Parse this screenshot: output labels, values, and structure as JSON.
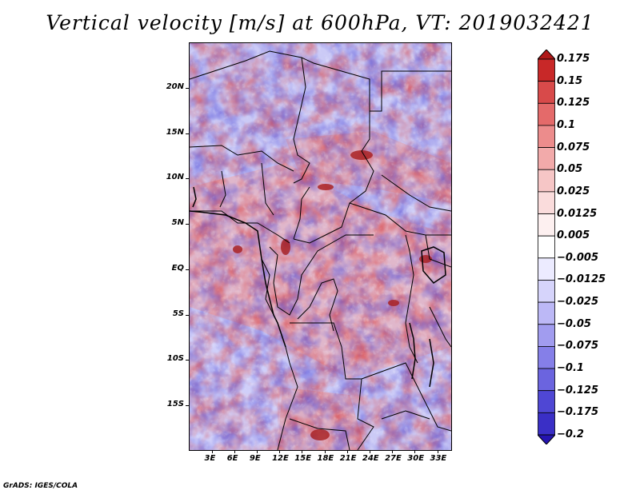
{
  "title": "Vertical velocity [m/s] at 600hPa, VT: 2019032421",
  "footer": "GrADS: IGES/COLA",
  "axes": {
    "lat_labels": [
      "20N",
      "15N",
      "10N",
      "5N",
      "EQ",
      "5S",
      "10S",
      "15S"
    ],
    "lon_labels": [
      "3E",
      "6E",
      "9E",
      "12E",
      "15E",
      "18E",
      "21E",
      "24E",
      "27E",
      "30E",
      "33E"
    ]
  },
  "colorbar": {
    "levels": [
      "0.175",
      "0.15",
      "0.125",
      "0.1",
      "0.075",
      "0.05",
      "0.025",
      "0.0125",
      "0.005",
      "−0.005",
      "−0.0125",
      "−0.025",
      "−0.05",
      "−0.075",
      "−0.1",
      "−0.125",
      "−0.175",
      "−0.2"
    ],
    "colors": [
      "#b01818",
      "#c82828",
      "#d84a4a",
      "#e46a6a",
      "#ec8c8c",
      "#f2aaaa",
      "#f6c6c6",
      "#fadcdc",
      "#fdf0f0",
      "#ffffff",
      "#ecebff",
      "#d6d4fb",
      "#bcb8f6",
      "#a19cef",
      "#857fe8",
      "#6b64df",
      "#4f47d4",
      "#3a2fc6",
      "#2514b0"
    ]
  },
  "map": {
    "field": "vertical velocity",
    "level": "600hPa",
    "valid_time": "2019032421",
    "red_color": "#e05555",
    "blue_color": "#5a55dd"
  }
}
